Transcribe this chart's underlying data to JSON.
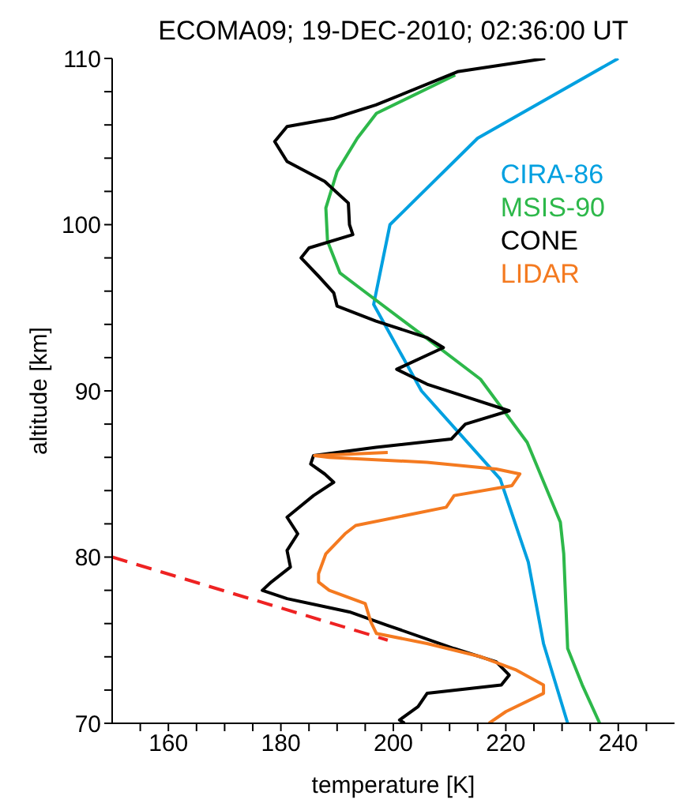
{
  "chart_data": {
    "type": "line",
    "title": "ECOMA09; 19-DEC-2010; 02:36:00 UT",
    "xlabel": "temperature [K]",
    "ylabel": "altitude [km]",
    "xlim": [
      150,
      250
    ],
    "xticks": [
      {
        "value": 155,
        "label": null
      },
      160,
      {
        "value": 165,
        "label": null
      },
      {
        "value": 170,
        "label": null
      },
      {
        "value": 175,
        "label": null
      },
      180,
      {
        "value": 185,
        "label": null
      },
      {
        "value": 190,
        "label": null
      },
      {
        "value": 195,
        "label": null
      },
      200,
      {
        "value": 205,
        "label": null
      },
      {
        "value": 210,
        "label": null
      },
      {
        "value": 215,
        "label": null
      },
      220,
      {
        "value": 225,
        "label": null
      },
      {
        "value": 230,
        "label": null
      },
      {
        "value": 235,
        "label": null
      },
      240,
      {
        "value": 245,
        "label": null
      }
    ],
    "ylim": [
      70,
      110
    ],
    "yticks": [
      70,
      {
        "value": 72,
        "label": null
      },
      {
        "value": 74,
        "label": null
      },
      {
        "value": 76,
        "label": null
      },
      {
        "value": 78,
        "label": null
      },
      80,
      {
        "value": 82,
        "label": null
      },
      {
        "value": 84,
        "label": null
      },
      {
        "value": 86,
        "label": null
      },
      {
        "value": 88,
        "label": null
      },
      90,
      {
        "value": 92,
        "label": null
      },
      {
        "value": 94,
        "label": null
      },
      {
        "value": 96,
        "label": null
      },
      {
        "value": 98,
        "label": null
      },
      100,
      {
        "value": 102,
        "label": null
      },
      {
        "value": 104,
        "label": null
      },
      {
        "value": 106,
        "label": null
      },
      {
        "value": 108,
        "label": null
      },
      110
    ],
    "legend": "top right",
    "marker": "none",
    "line_style": "solid",
    "series": [
      {
        "name": "CIRA-86",
        "color": "#00a0e0",
        "x": [
          240,
          215,
          199.4,
          196.5,
          205,
          219,
          224,
          226.7,
          231
        ],
        "values": [
          110,
          105.2,
          100,
          95.2,
          90,
          84.7,
          79.7,
          74.8,
          70
        ]
      },
      {
        "name": "MSIS-90",
        "color": "#2db84a",
        "x": [
          211,
          197,
          193.6,
          190,
          188,
          188.3,
          190.5,
          194,
          205,
          215.5,
          223.8,
          229.7,
          230.3,
          231,
          233.6,
          236.7
        ],
        "values": [
          109,
          106.7,
          105.2,
          103.2,
          101,
          99,
          97.1,
          96.2,
          93.4,
          90.7,
          86.9,
          82.1,
          80.2,
          74.5,
          72.3,
          70
        ]
      },
      {
        "name": "CONE",
        "color": "#000000",
        "x": [
          227,
          211.4,
          196.9,
          189.4,
          181.1,
          178.9,
          181.1,
          187.8,
          192,
          192.2,
          192.8,
          185,
          183.6,
          186.7,
          189.4,
          190,
          196.9,
          206,
          208.9,
          200.6,
          206,
          220.6,
          212.8,
          210.3,
          196.9,
          185.8,
          185.3,
          187.8,
          189.4,
          185.8,
          181.1,
          183,
          181.1,
          181.7,
          178.3,
          176.7,
          181.1,
          192.2,
          198.9,
          210.8,
          218.3,
          220.6,
          219.2,
          206,
          204.4,
          201.1,
          202
        ],
        "values": [
          110,
          109.2,
          107.2,
          106.4,
          105.9,
          105,
          103.8,
          102.6,
          101.3,
          100,
          99.4,
          98.6,
          98,
          96.9,
          95.9,
          95.1,
          94.2,
          93.2,
          92.6,
          91.3,
          90.4,
          88.8,
          88,
          87.1,
          86.6,
          86.1,
          85.6,
          85,
          84.5,
          83.7,
          82.4,
          81.4,
          80.4,
          79.4,
          78.5,
          78,
          77.5,
          76.7,
          75.9,
          74.5,
          73.7,
          72.9,
          72.3,
          71.8,
          71,
          70.2,
          70
        ]
      },
      {
        "name": "LIDAR",
        "color": "#f47a20",
        "x": [
          199,
          186,
          188.6,
          206,
          218.3,
          222.5,
          221.1,
          210.8,
          209.4,
          193.3,
          191.4,
          188,
          186.7,
          186.7,
          188.6,
          195,
          196,
          197,
          206,
          215.6,
          221.9,
          226.7,
          226.7,
          220,
          217
        ],
        "values": [
          86.3,
          86.1,
          86,
          85.7,
          85.3,
          85,
          84.3,
          83.7,
          83,
          81.9,
          81.4,
          80.2,
          79,
          78.5,
          78,
          77.2,
          76.1,
          75.4,
          74.8,
          74,
          73.2,
          72.3,
          71.8,
          70.7,
          70
        ]
      },
      {
        "color": "#ee2222",
        "line_style": "dashed",
        "x": [
          150,
          199
        ],
        "values": [
          80,
          75
        ]
      }
    ]
  }
}
